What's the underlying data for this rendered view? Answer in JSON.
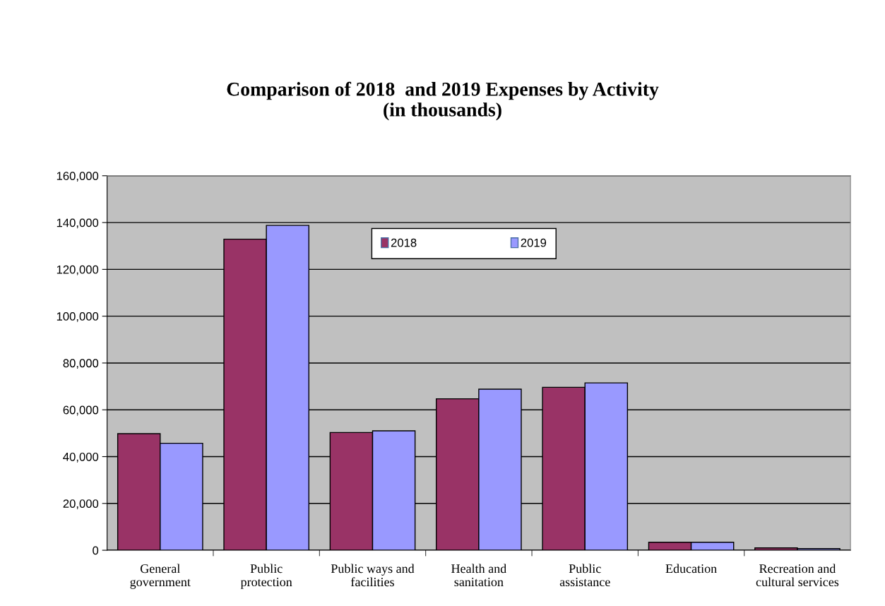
{
  "chart_data": {
    "type": "bar",
    "title": "Comparison of 2018  and 2019 Expenses by Activity\n(in thousands)",
    "categories": [
      "General\ngovernment",
      "Public\nprotection",
      "Public ways and\nfacilities",
      "Health and\nsanitation",
      "Public\nassistance",
      "Education",
      "Recreation and\ncultural services"
    ],
    "series": [
      {
        "name": "2018",
        "color": "#993366",
        "values": [
          49800,
          132900,
          50300,
          64700,
          69600,
          3400,
          1000
        ]
      },
      {
        "name": "2019",
        "color": "#9999ff",
        "values": [
          45700,
          138800,
          51000,
          68800,
          71500,
          3400,
          700
        ]
      }
    ],
    "ylim": [
      0,
      160000
    ],
    "yticks": [
      {
        "value": 0,
        "label": "0"
      },
      {
        "value": 20000,
        "label": "20,000"
      },
      {
        "value": 40000,
        "label": "40,000"
      },
      {
        "value": 60000,
        "label": "60,000"
      },
      {
        "value": 80000,
        "label": "80,000"
      },
      {
        "value": 100000,
        "label": "100,000"
      },
      {
        "value": 120000,
        "label": "120,000"
      },
      {
        "value": 140000,
        "label": "140,000"
      },
      {
        "value": 160000,
        "label": "160,000"
      }
    ],
    "grid": "y",
    "legend": "top"
  }
}
